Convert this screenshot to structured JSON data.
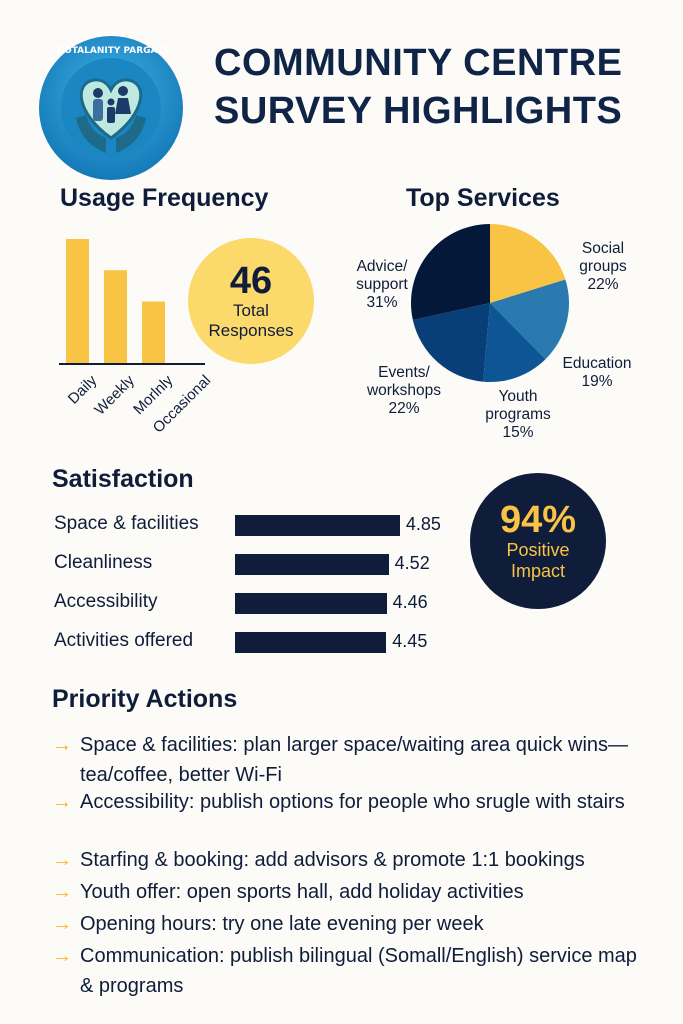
{
  "header": {
    "title_line1": "COMMUNITY CENTRE",
    "title_line2": "SURVEY HIGHLIGHTS",
    "logo_text": "PON AY LBOTALANITY PARGAZS OCSSS IN ION"
  },
  "total": {
    "value": "46",
    "label1": "Total",
    "label2": "Responses"
  },
  "impact": {
    "value": "94%",
    "label1": "Positive",
    "label2": "Impact"
  },
  "colors": {
    "navy": "#0f1d3a",
    "yellow": "#f9c344",
    "light_yellow": "#fbd96a"
  },
  "chart_data": [
    {
      "type": "bar",
      "title": "Usage Frequency",
      "categories": [
        "Daily",
        "Weekly",
        "Monthly",
        "Occasional"
      ],
      "tick_labels": [
        "Daily",
        "Weekly",
        "Morlnly",
        "Occasional"
      ],
      "values": [
        20,
        15,
        10,
        0
      ],
      "color": "#f9c344"
    },
    {
      "type": "pie",
      "title": "Top Services",
      "slices": [
        {
          "label1": "Social",
          "label2": "groups",
          "pct": "22%",
          "value": 22,
          "color": "#f9c344"
        },
        {
          "label1": "Education",
          "label2": "",
          "pct": "19%",
          "value": 19,
          "color": "#2a7ab0"
        },
        {
          "label1": "Youth",
          "label2": "programs",
          "pct": "15%",
          "value": 15,
          "color": "#0e5596"
        },
        {
          "label1": "Events/",
          "label2": "workshops",
          "pct": "22%",
          "value": 22,
          "color": "#083f78"
        },
        {
          "label1": "Advice/",
          "label2": "support",
          "pct": "31%",
          "value": 31,
          "color": "#04193a"
        }
      ]
    },
    {
      "type": "bar",
      "orientation": "horizontal",
      "title": "Satisfaction",
      "categories": [
        "Space & facilities",
        "Cleanliness",
        "Accessibility",
        "Activities offered"
      ],
      "values": [
        4.85,
        4.52,
        4.46,
        4.45
      ],
      "labels": [
        "4.85",
        "4.52",
        "4.46",
        "4.45"
      ],
      "xlim": [
        0,
        5
      ]
    }
  ],
  "actions": {
    "title": "Priority Actions",
    "items": [
      "Space & facilities:   plan larger space/waiting area quick wins—tea/coffee, better Wi-Fi",
      "Accessibility: publish options for people who srugle with stairs",
      "Starfing & booking: add advisors & promote 1:1 bookings",
      "Youth offer: open sports hall, add holiday activities",
      "Opening hours: try one late evening per week",
      "Communication: publish bilingual (Somall/English) service map & programs"
    ]
  }
}
